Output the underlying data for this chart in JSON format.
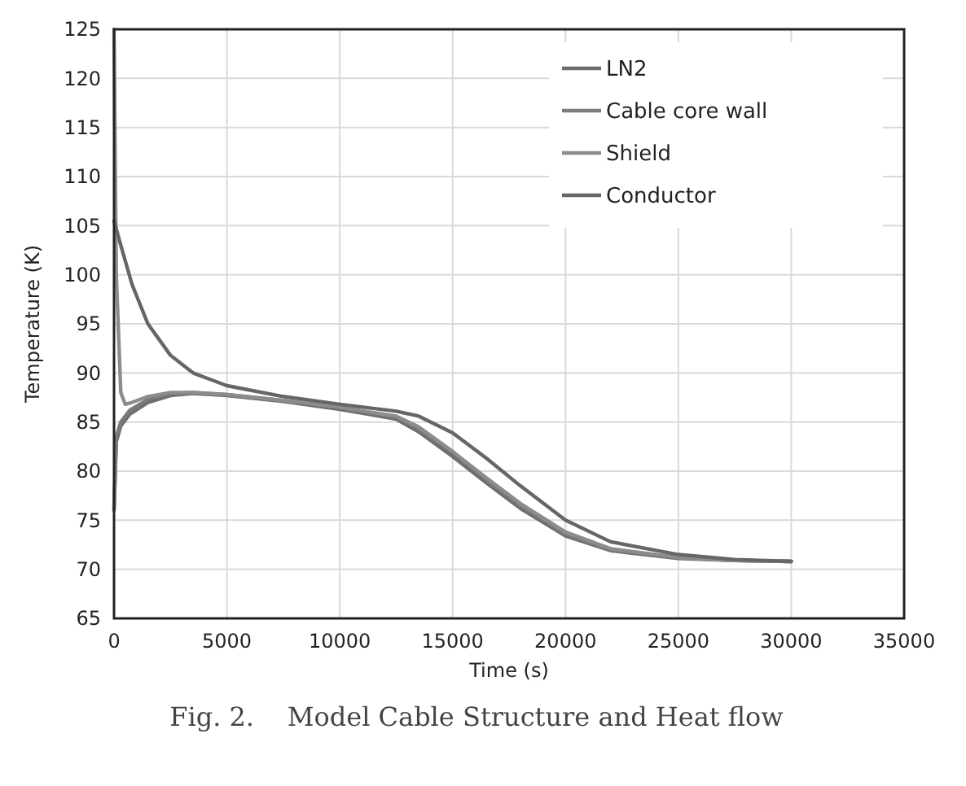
{
  "chart_data": {
    "type": "line",
    "xlabel": "Time (s)",
    "ylabel": "Temperature (K)",
    "annotations": [
      "Fig. 2.    Model Cable Structure and Heat flow"
    ],
    "xlim": [
      0,
      35000
    ],
    "xticks": [
      0,
      5000,
      10000,
      15000,
      20000,
      25000,
      30000,
      35000
    ],
    "ylim": [
      65,
      125
    ],
    "yticks": [
      65,
      70,
      75,
      80,
      85,
      90,
      95,
      100,
      105,
      110,
      115,
      120,
      125
    ],
    "grid": true,
    "legend": "top right",
    "marker": "none",
    "line_style": "solid",
    "series": [
      {
        "name": "LN2",
        "color": "#6e6e6e",
        "x": [
          0,
          100,
          300,
          700,
          1500,
          2500,
          3500,
          5000,
          7500,
          10000,
          12500,
          13500,
          15000,
          16500,
          18000,
          20000,
          22000,
          25000,
          27500,
          30000
        ],
        "values": [
          76,
          83,
          84.6,
          85.8,
          87,
          87.7,
          87.9,
          87.7,
          87.1,
          86.3,
          85.3,
          84,
          81.5,
          78.8,
          76.2,
          73.4,
          71.9,
          71.1,
          70.9,
          70.8
        ]
      },
      {
        "name": "Cable core wall",
        "color": "#7a7a7a",
        "x": [
          0,
          100,
          300,
          700,
          1500,
          2500,
          3500,
          5000,
          7500,
          10000,
          12500,
          13500,
          15000,
          16500,
          18000,
          20000,
          22000,
          25000,
          27500,
          30000
        ],
        "values": [
          76,
          83.5,
          85,
          86.2,
          87.3,
          87.9,
          88,
          87.8,
          87.2,
          86.5,
          85.5,
          84.3,
          81.9,
          79.1,
          76.5,
          73.6,
          72,
          71.2,
          70.9,
          70.8
        ]
      },
      {
        "name": "Shield",
        "color": "#8c8c8c",
        "x": [
          0,
          100,
          300,
          500,
          800,
          1500,
          2500,
          3500,
          5000,
          7500,
          10000,
          12500,
          13500,
          15000,
          16500,
          18000,
          20000,
          22000,
          25000,
          27500,
          30000
        ],
        "values": [
          125,
          100,
          88,
          86.8,
          87,
          87.6,
          88,
          88,
          87.8,
          87.2,
          86.5,
          85.6,
          84.5,
          82,
          79.3,
          76.7,
          73.8,
          72.1,
          71.2,
          70.9,
          70.8
        ]
      },
      {
        "name": "Conductor",
        "color": "#666666",
        "x": [
          0,
          300,
          800,
          1500,
          2500,
          3500,
          5000,
          7500,
          10000,
          12500,
          13500,
          15000,
          16500,
          18000,
          20000,
          22000,
          25000,
          27500,
          30000
        ],
        "values": [
          105.5,
          103,
          99,
          95,
          91.8,
          90,
          88.7,
          87.6,
          86.8,
          86.1,
          85.6,
          83.9,
          81.3,
          78.5,
          75,
          72.8,
          71.5,
          71,
          70.8
        ]
      }
    ]
  }
}
